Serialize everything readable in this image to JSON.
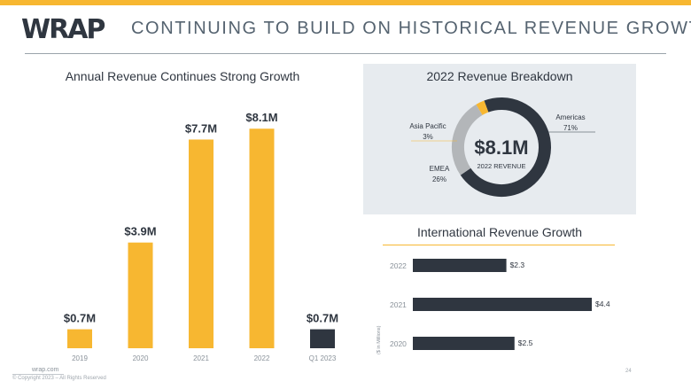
{
  "header": {
    "logo_text": "WRAP",
    "title": "CONTINUING TO BUILD ON HISTORICAL REVENUE GROWTH"
  },
  "colors": {
    "gold": "#f7b731",
    "dark": "#2f3640",
    "gray": "#b3b6b9",
    "panel_bg": "#e7ebef"
  },
  "chart_data": [
    {
      "type": "bar",
      "title": "Annual Revenue Continues Strong Growth",
      "categories": [
        "2019",
        "2020",
        "2021",
        "2022",
        "Q1 2023"
      ],
      "values": [
        0.7,
        3.9,
        7.7,
        8.1,
        0.7
      ],
      "labels": [
        "$0.7M",
        "$3.9M",
        "$7.7M",
        "$8.1M",
        "$0.7M"
      ],
      "bar_colors": [
        "#f7b731",
        "#f7b731",
        "#f7b731",
        "#f7b731",
        "#2f3640"
      ],
      "ylabel": "",
      "xlabel": "",
      "ylim": [
        0,
        8.5
      ],
      "grid": false
    },
    {
      "type": "pie",
      "title": "2022 Revenue Breakdown",
      "center_value": "$8.1M",
      "center_label": "2022 REVENUE",
      "slices": [
        {
          "name": "Americas",
          "value": 71,
          "label": "71%",
          "color": "#2f3640"
        },
        {
          "name": "EMEA",
          "value": 26,
          "label": "26%",
          "color": "#b3b6b9"
        },
        {
          "name": "Asia Pacific",
          "value": 3,
          "label": "3%",
          "color": "#f7b731"
        }
      ]
    },
    {
      "type": "bar",
      "orientation": "horizontal",
      "title": "International Revenue Growth",
      "categories": [
        "2022",
        "2021",
        "2020"
      ],
      "values": [
        2.3,
        4.4,
        2.5
      ],
      "labels": [
        "$2.3",
        "$4.4",
        "$2.5"
      ],
      "ylabel": "($ in Millions)",
      "xlim": [
        0,
        4.4
      ]
    }
  ],
  "footer": {
    "website": "wrap.com",
    "copyright": "© Copyright 2023 – All Rights Reserved",
    "page_number": "24"
  }
}
